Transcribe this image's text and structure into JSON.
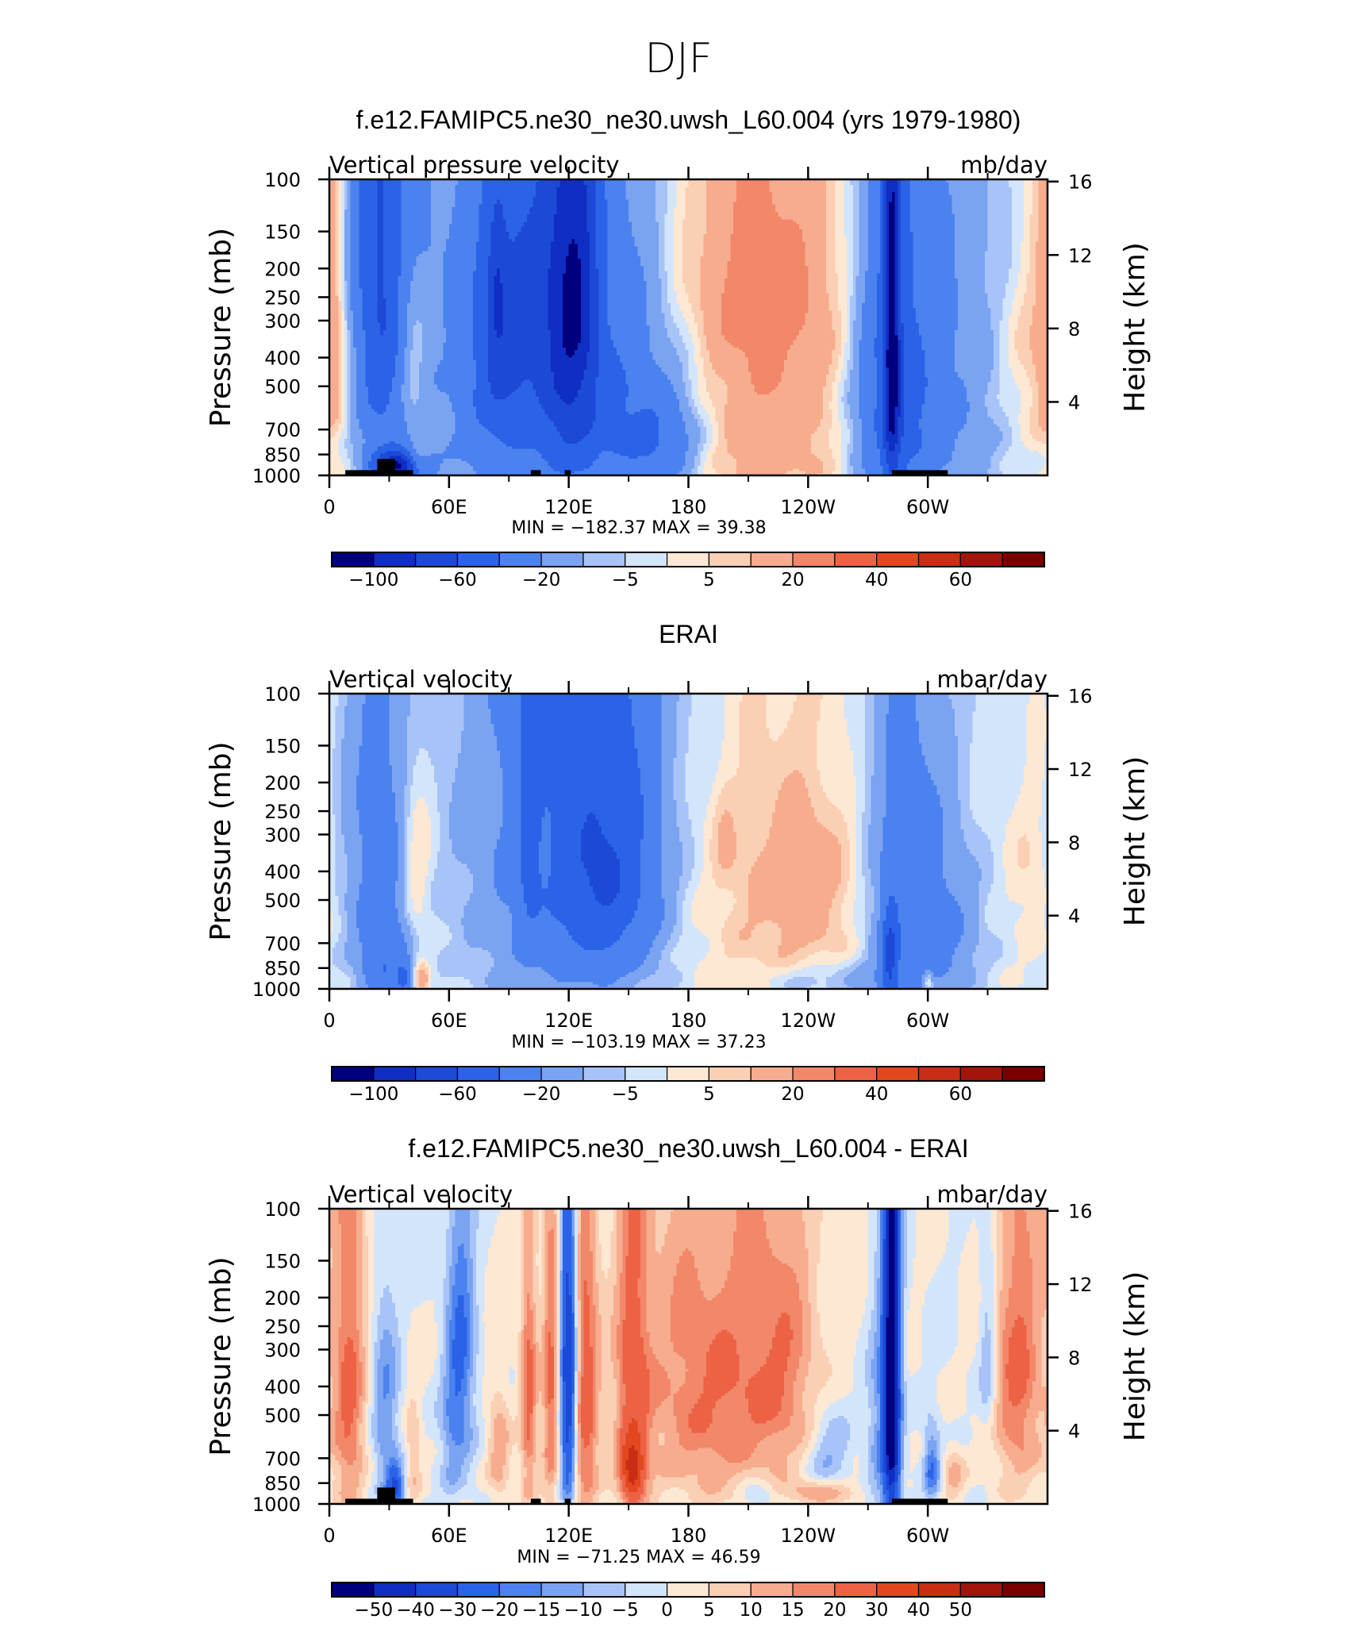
{
  "figure_title": "DJF",
  "chart_data": [
    {
      "type": "heatmap",
      "title": "f.e12.FAMIPC5.ne30_ne30.uwsh_L60.004 (yrs 1979-1980)",
      "left_label": "Vertical pressure velocity",
      "right_label": "mb/day",
      "ylabel": "Pressure (mb)",
      "ylabel_right": "Height (km)",
      "x_ticks": [
        "0",
        "60E",
        "120E",
        "180",
        "120W",
        "60W"
      ],
      "x_tick_values": [
        0,
        60,
        120,
        180,
        240,
        300
      ],
      "xlim": [
        0,
        360
      ],
      "y_ticks": [
        "100",
        "150",
        "200",
        "250",
        "300",
        "400",
        "500",
        "700",
        "850",
        "1000"
      ],
      "y_tick_values": [
        100,
        150,
        200,
        250,
        300,
        400,
        500,
        700,
        850,
        1000
      ],
      "ylim": [
        1000,
        100
      ],
      "y_right_ticks": [
        "4",
        "8",
        "12",
        "16"
      ],
      "y_right_tick_values": [
        4,
        8,
        12,
        16
      ],
      "min_max_text": "MIN = −182.37   MAX =   39.38",
      "min": -182.37,
      "max": 39.38,
      "colorbar_labels": [
        "−100",
        "−60",
        "−20",
        "−5",
        "5",
        "20",
        "40",
        "60"
      ],
      "colorbar_label_positions": [
        1,
        3,
        5,
        7,
        9,
        11,
        13,
        15
      ],
      "topography": [
        [
          8,
          24,
          960
        ],
        [
          24,
          33,
          880
        ],
        [
          33,
          42,
          960
        ],
        [
          101,
          106,
          960
        ],
        [
          118,
          121,
          960
        ],
        [
          282,
          310,
          960
        ]
      ],
      "features": [
        [
          -30,
          25,
          280,
          14,
          480
        ],
        [
          -30,
          25,
          15,
          9,
          880
        ],
        [
          -90,
          35,
          930,
          9,
          120
        ],
        [
          25,
          44,
          900,
          4,
          120
        ],
        [
          18,
          41,
          400,
          5,
          280
        ],
        [
          -25,
          84,
          230,
          3,
          120
        ],
        [
          -30,
          100,
          620,
          38,
          760
        ],
        [
          -30,
          150,
          600,
          28,
          600
        ],
        [
          -25,
          100,
          220,
          20,
          280
        ],
        [
          -42,
          120,
          330,
          10,
          520
        ],
        [
          -25,
          125,
          180,
          7,
          260
        ],
        [
          -30,
          85,
          450,
          10,
          320
        ],
        [
          -20,
          168,
          780,
          13,
          260
        ],
        [
          20,
          212,
          560,
          38,
          760
        ],
        [
          12,
          208,
          190,
          44,
          220
        ],
        [
          -42,
          282,
          500,
          14,
          760
        ],
        [
          -70,
          282,
          360,
          3,
          620
        ],
        [
          -22,
          305,
          580,
          25,
          720
        ],
        [
          15,
          358,
          330,
          14,
          460
        ],
        [
          15,
          2,
          330,
          5,
          460
        ],
        [
          -5,
          60,
          120,
          120,
          160
        ]
      ],
      "ticks": [
        -150,
        -100,
        -80,
        -60,
        -40,
        -20,
        -10,
        -5,
        0,
        5,
        10,
        20,
        30,
        40,
        50,
        60,
        80
      ]
    },
    {
      "type": "heatmap",
      "title": "ERAI",
      "left_label": "Vertical velocity",
      "right_label": "mbar/day",
      "ylabel": "Pressure (mb)",
      "ylabel_right": "Height (km)",
      "x_ticks": [
        "0",
        "60E",
        "120E",
        "180",
        "120W",
        "60W"
      ],
      "x_tick_values": [
        0,
        60,
        120,
        180,
        240,
        300
      ],
      "xlim": [
        0,
        360
      ],
      "y_ticks": [
        "100",
        "150",
        "200",
        "250",
        "300",
        "400",
        "500",
        "700",
        "850",
        "1000"
      ],
      "y_tick_values": [
        100,
        150,
        200,
        250,
        300,
        400,
        500,
        700,
        850,
        1000
      ],
      "ylim": [
        1000,
        100
      ],
      "y_right_ticks": [
        "4",
        "8",
        "12",
        "16"
      ],
      "y_right_tick_values": [
        4,
        8,
        12,
        16
      ],
      "min_max_text": "MIN = −103.19   MAX =   37.23",
      "min": -103.19,
      "max": 37.23,
      "colorbar_labels": [
        "−100",
        "−60",
        "−20",
        "−5",
        "5",
        "20",
        "40",
        "60"
      ],
      "colorbar_label_positions": [
        1,
        3,
        5,
        7,
        9,
        11,
        13,
        15
      ],
      "topography": [],
      "features": [
        [
          -26,
          25,
          350,
          13,
          600
        ],
        [
          -25,
          28,
          850,
          8,
          300
        ],
        [
          -30,
          38,
          920,
          3,
          120
        ],
        [
          16,
          43,
          400,
          6,
          320
        ],
        [
          22,
          46,
          930,
          3,
          120
        ],
        [
          -32,
          120,
          340,
          36,
          720
        ],
        [
          -38,
          140,
          400,
          18,
          420
        ],
        [
          -20,
          100,
          300,
          4,
          400
        ],
        [
          -10,
          118,
          80,
          25,
          120
        ],
        [
          8,
          205,
          450,
          40,
          600
        ],
        [
          10,
          240,
          430,
          20,
          420
        ],
        [
          6,
          198,
          300,
          4,
          120
        ],
        [
          -26,
          287,
          560,
          14,
          700
        ],
        [
          -45,
          281,
          800,
          3,
          320
        ],
        [
          -20,
          308,
          640,
          15,
          420
        ],
        [
          -12,
          248,
          930,
          22,
          120
        ],
        [
          20,
          300,
          930,
          2,
          90
        ],
        [
          5,
          352,
          420,
          8,
          300
        ],
        [
          -4,
          255,
          140,
          60,
          120
        ]
      ],
      "ticks": [
        -150,
        -100,
        -80,
        -60,
        -40,
        -20,
        -10,
        -5,
        0,
        5,
        10,
        20,
        30,
        40,
        50,
        60,
        80
      ]
    },
    {
      "type": "heatmap",
      "title": "f.e12.FAMIPC5.ne30_ne30.uwsh_L60.004 - ERAI",
      "left_label": "Vertical velocity",
      "right_label": "mbar/day",
      "ylabel": "Pressure (mb)",
      "ylabel_right": "Height (km)",
      "x_ticks": [
        "0",
        "60E",
        "120E",
        "180",
        "120W",
        "60W"
      ],
      "x_tick_values": [
        0,
        60,
        120,
        180,
        240,
        300
      ],
      "xlim": [
        0,
        360
      ],
      "y_ticks": [
        "100",
        "150",
        "200",
        "250",
        "300",
        "400",
        "500",
        "700",
        "850",
        "1000"
      ],
      "y_tick_values": [
        100,
        150,
        200,
        250,
        300,
        400,
        500,
        700,
        850,
        1000
      ],
      "ylim": [
        1000,
        100
      ],
      "y_right_ticks": [
        "4",
        "8",
        "12",
        "16"
      ],
      "y_right_tick_values": [
        4,
        8,
        12,
        16
      ],
      "min_max_text": "MIN = −71.25   MAX =   46.59",
      "min": -71.25,
      "max": 46.59,
      "colorbar_labels": [
        "−50",
        "−40",
        "−30",
        "−20",
        "−15",
        "−10",
        "−5",
        "0",
        "5",
        "10",
        "15",
        "20",
        "30",
        "40",
        "50"
      ],
      "colorbar_label_positions": [
        1,
        2,
        3,
        4,
        5,
        6,
        7,
        8,
        9,
        10,
        11,
        12,
        13,
        14,
        15
      ],
      "topography": [
        [
          8,
          24,
          960
        ],
        [
          24,
          33,
          880
        ],
        [
          33,
          42,
          960
        ],
        [
          101,
          106,
          960
        ],
        [
          118,
          121,
          960
        ],
        [
          282,
          310,
          960
        ]
      ],
      "features": [
        [
          22,
          10,
          400,
          6,
          600
        ],
        [
          -15,
          28,
          500,
          5,
          400
        ],
        [
          -30,
          33,
          880,
          3,
          150
        ],
        [
          10,
          42,
          700,
          3,
          300
        ],
        [
          -20,
          66,
          330,
          5,
          420
        ],
        [
          14,
          85,
          650,
          4,
          300
        ],
        [
          22,
          100,
          430,
          3,
          520
        ],
        [
          22,
          111,
          430,
          3,
          520
        ],
        [
          -45,
          120,
          380,
          3,
          560
        ],
        [
          25,
          128,
          450,
          5,
          620
        ],
        [
          22,
          152,
          450,
          6,
          600
        ],
        [
          30,
          152,
          780,
          4,
          160
        ],
        [
          20,
          190,
          420,
          25,
          500
        ],
        [
          14,
          228,
          350,
          14,
          380
        ],
        [
          15,
          248,
          910,
          13,
          90
        ],
        [
          -12,
          250,
          680,
          8,
          240
        ],
        [
          -65,
          282,
          400,
          3,
          680
        ],
        [
          -12,
          275,
          600,
          4,
          500
        ],
        [
          -20,
          302,
          750,
          3,
          220
        ],
        [
          12,
          313,
          800,
          4,
          160
        ],
        [
          -12,
          330,
          300,
          3,
          300
        ],
        [
          22,
          345,
          350,
          9,
          480
        ],
        [
          -8,
          60,
          600,
          4,
          350
        ],
        [
          -10,
          215,
          930,
          6,
          100
        ]
      ],
      "ticks": [
        -60,
        -50,
        -40,
        -30,
        -20,
        -15,
        -10,
        -5,
        0,
        5,
        10,
        15,
        20,
        30,
        40,
        50,
        60
      ]
    }
  ],
  "palette": [
    "#00007f",
    "#0f2ec4",
    "#1c49d6",
    "#2a63e8",
    "#4b82ef",
    "#7aa3f2",
    "#a8c3f7",
    "#d3e5fb",
    "#fde8d4",
    "#fbcfb4",
    "#f7ac8e",
    "#f2876a",
    "#ed6244",
    "#e2471f",
    "#c92d13",
    "#a1150b",
    "#780000"
  ],
  "topo_color": "#000000"
}
